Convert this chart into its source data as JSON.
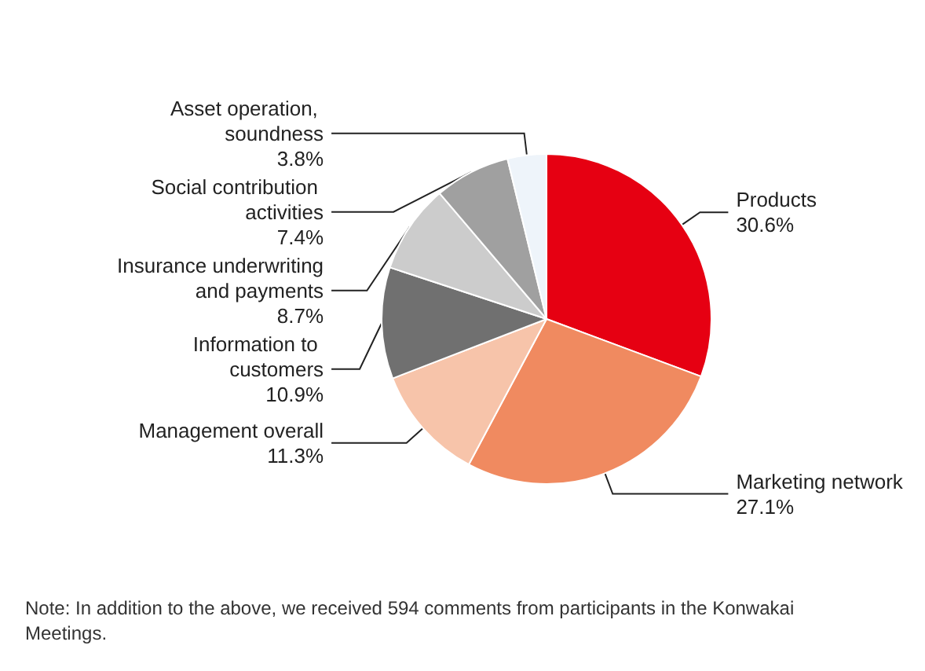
{
  "chart_data": {
    "type": "pie",
    "categories": [
      "Products",
      "Marketing network",
      "Management overall",
      "Information to customers",
      "Insurance underwriting and payments",
      "Social contribution activities",
      "Asset operation, soundness"
    ],
    "values": [
      30.6,
      27.1,
      11.3,
      10.9,
      8.7,
      7.4,
      3.8
    ],
    "value_labels": [
      "30.6%",
      "27.1%",
      "11.3%",
      "10.9%",
      "8.7%",
      "7.4%",
      "3.8%"
    ],
    "colors": [
      "#e60012",
      "#f08a60",
      "#f7c4aa",
      "#707070",
      "#cccccc",
      "#a0a0a0",
      "#eef4fa"
    ],
    "legend": false,
    "annotations": [
      "Note: In addition to the above, we received 594 comments from participants in the Konwakai Meetings."
    ]
  }
}
